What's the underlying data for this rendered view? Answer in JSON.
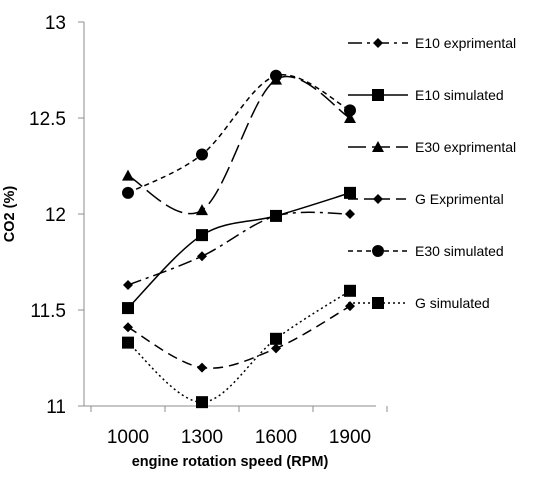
{
  "chart_data": {
    "type": "line",
    "title": "",
    "xlabel": "engine rotation speed (RPM)",
    "ylabel": "CO2 (%)",
    "categories": [
      "1000",
      "1300",
      "1600",
      "1900"
    ],
    "ylim": [
      11,
      13
    ],
    "y_ticks": [
      "11",
      "11.5",
      "12",
      "12.5",
      "13"
    ],
    "grid": false,
    "smooth": true,
    "legend_position": "right",
    "series": [
      {
        "name": "E10 exprimental",
        "values": [
          11.63,
          11.78,
          11.99,
          12.0
        ],
        "line_style": "dash-dot",
        "marker": "diamond"
      },
      {
        "name": "E10 simulated",
        "values": [
          11.51,
          11.89,
          11.99,
          12.11
        ],
        "line_style": "solid",
        "marker": "square"
      },
      {
        "name": "E30 exprimental",
        "values": [
          12.2,
          12.02,
          12.7,
          12.5
        ],
        "line_style": "long-dash",
        "marker": "triangle"
      },
      {
        "name": "G Exprimental",
        "values": [
          11.41,
          11.2,
          11.3,
          11.52
        ],
        "line_style": "dash",
        "marker": "diamond"
      },
      {
        "name": "E30 simulated",
        "values": [
          12.11,
          12.31,
          12.72,
          12.54
        ],
        "line_style": "short-dash",
        "marker": "circle"
      },
      {
        "name": "G simulated",
        "values": [
          11.33,
          11.02,
          11.35,
          11.6
        ],
        "line_style": "dotted",
        "marker": "square"
      }
    ]
  }
}
